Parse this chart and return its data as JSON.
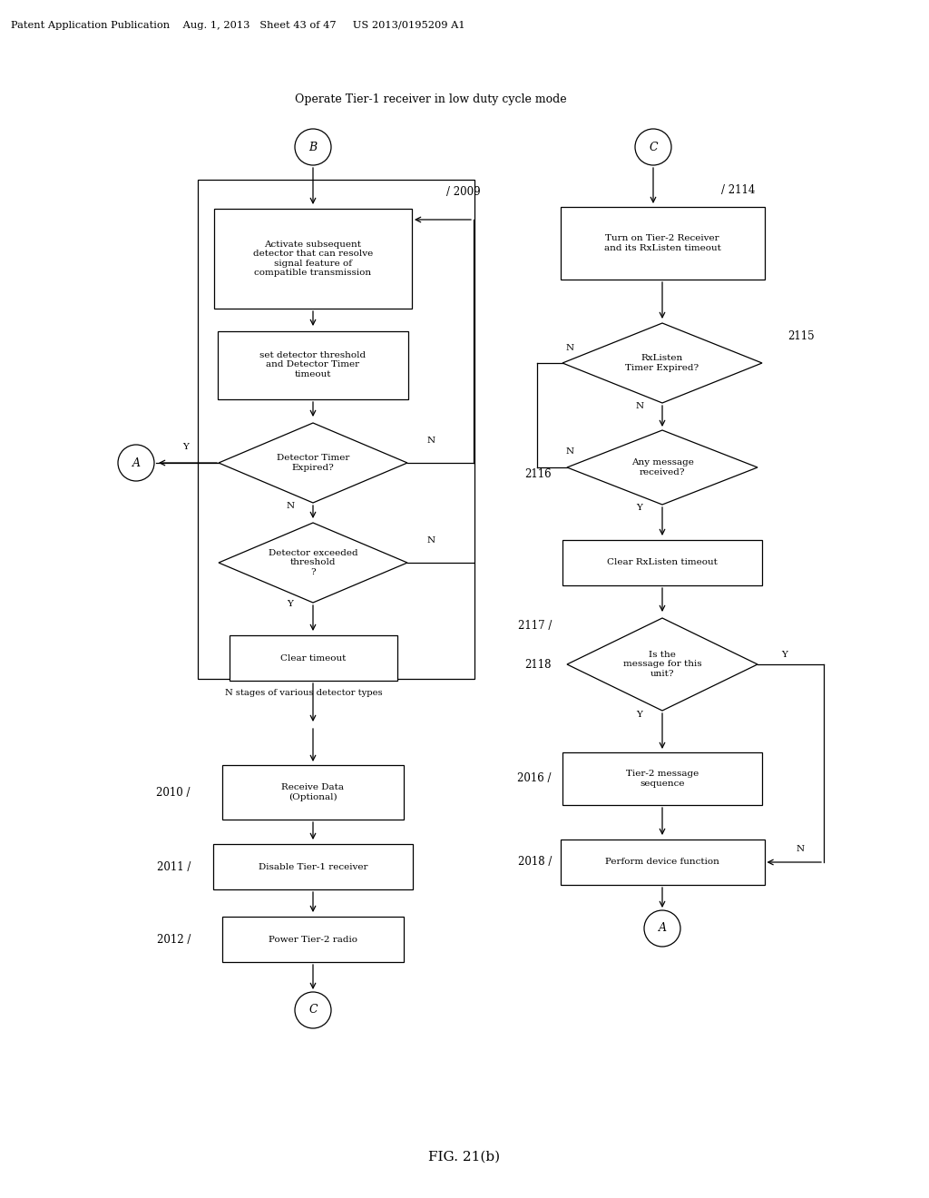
{
  "header": "Patent Application Publication    Aug. 1, 2013   Sheet 43 of 47     US 2013/0195209 A1",
  "fig_label": "FIG. 21(b)",
  "top_label": "Operate Tier-1 receiver in low duty cycle mode",
  "bg_color": "#ffffff"
}
